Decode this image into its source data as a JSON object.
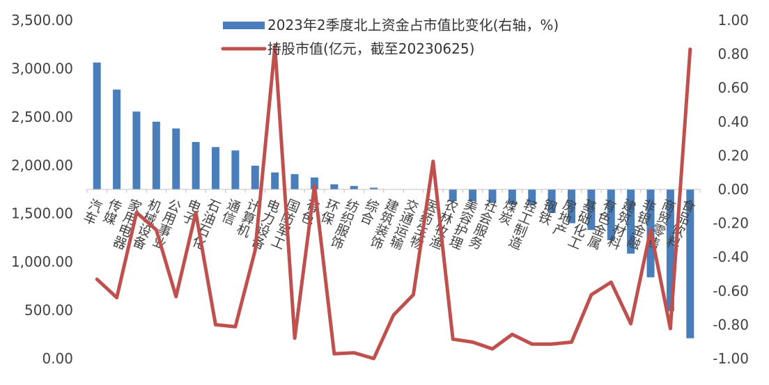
{
  "chart_data": {
    "type": "bar+line",
    "categories": [
      "汽车",
      "传媒",
      "家用电器",
      "机械设备",
      "公用事业",
      "电子",
      "石油石化",
      "通信",
      "计算机",
      "电力设备",
      "国防军工",
      "有色",
      "环保",
      "纺织服饰",
      "综合",
      "建筑装饰",
      "交通运输",
      "医药生物",
      "农林牧渔",
      "美容护理",
      "社会服务",
      "煤炭",
      "轻工制造",
      "钢铁",
      "房地产",
      "基础化工",
      "有色金属",
      "建筑材料",
      "非银金融",
      "商贸零售",
      "食品饮料"
    ],
    "series": [
      {
        "name": "2023年2季度北上资金占市值比变化(右轴，%)",
        "type": "bar",
        "axis": "right",
        "color": "#4a7ebb",
        "values": [
          0.75,
          0.59,
          0.46,
          0.4,
          0.36,
          0.28,
          0.25,
          0.23,
          0.14,
          0.1,
          0.09,
          0.07,
          0.03,
          0.02,
          0.01,
          0.0,
          0.0,
          0.0,
          -0.07,
          -0.07,
          -0.08,
          -0.09,
          -0.09,
          -0.14,
          -0.2,
          -0.24,
          -0.3,
          -0.38,
          -0.52,
          -0.72,
          -0.88
        ]
      },
      {
        "name": "持股市值(亿元，截至20230625)",
        "type": "line",
        "axis": "left",
        "color": "#c0504d",
        "values": [
          820,
          630,
          1510,
          1330,
          640,
          1510,
          350,
          330,
          1120,
          3230,
          210,
          1790,
          50,
          60,
          0,
          450,
          660,
          2040,
          200,
          170,
          100,
          250,
          150,
          150,
          170,
          660,
          790,
          360,
          1330,
          310,
          3200
        ]
      }
    ],
    "y_left": {
      "ylim": [
        0,
        3500
      ],
      "ticks": [
        "0.00",
        "500.00",
        "1,000.00",
        "1,500.00",
        "2,000.00",
        "2,500.00",
        "3,000.00",
        "3,500.00"
      ]
    },
    "y_right": {
      "ylim": [
        -1.0,
        1.0
      ],
      "ticks": [
        "-1.00",
        "-0.80",
        "-0.60",
        "-0.40",
        "-0.20",
        "0.00",
        "0.20",
        "0.40",
        "0.60",
        "0.80",
        "1.00"
      ]
    },
    "legend_position": "top-center"
  }
}
